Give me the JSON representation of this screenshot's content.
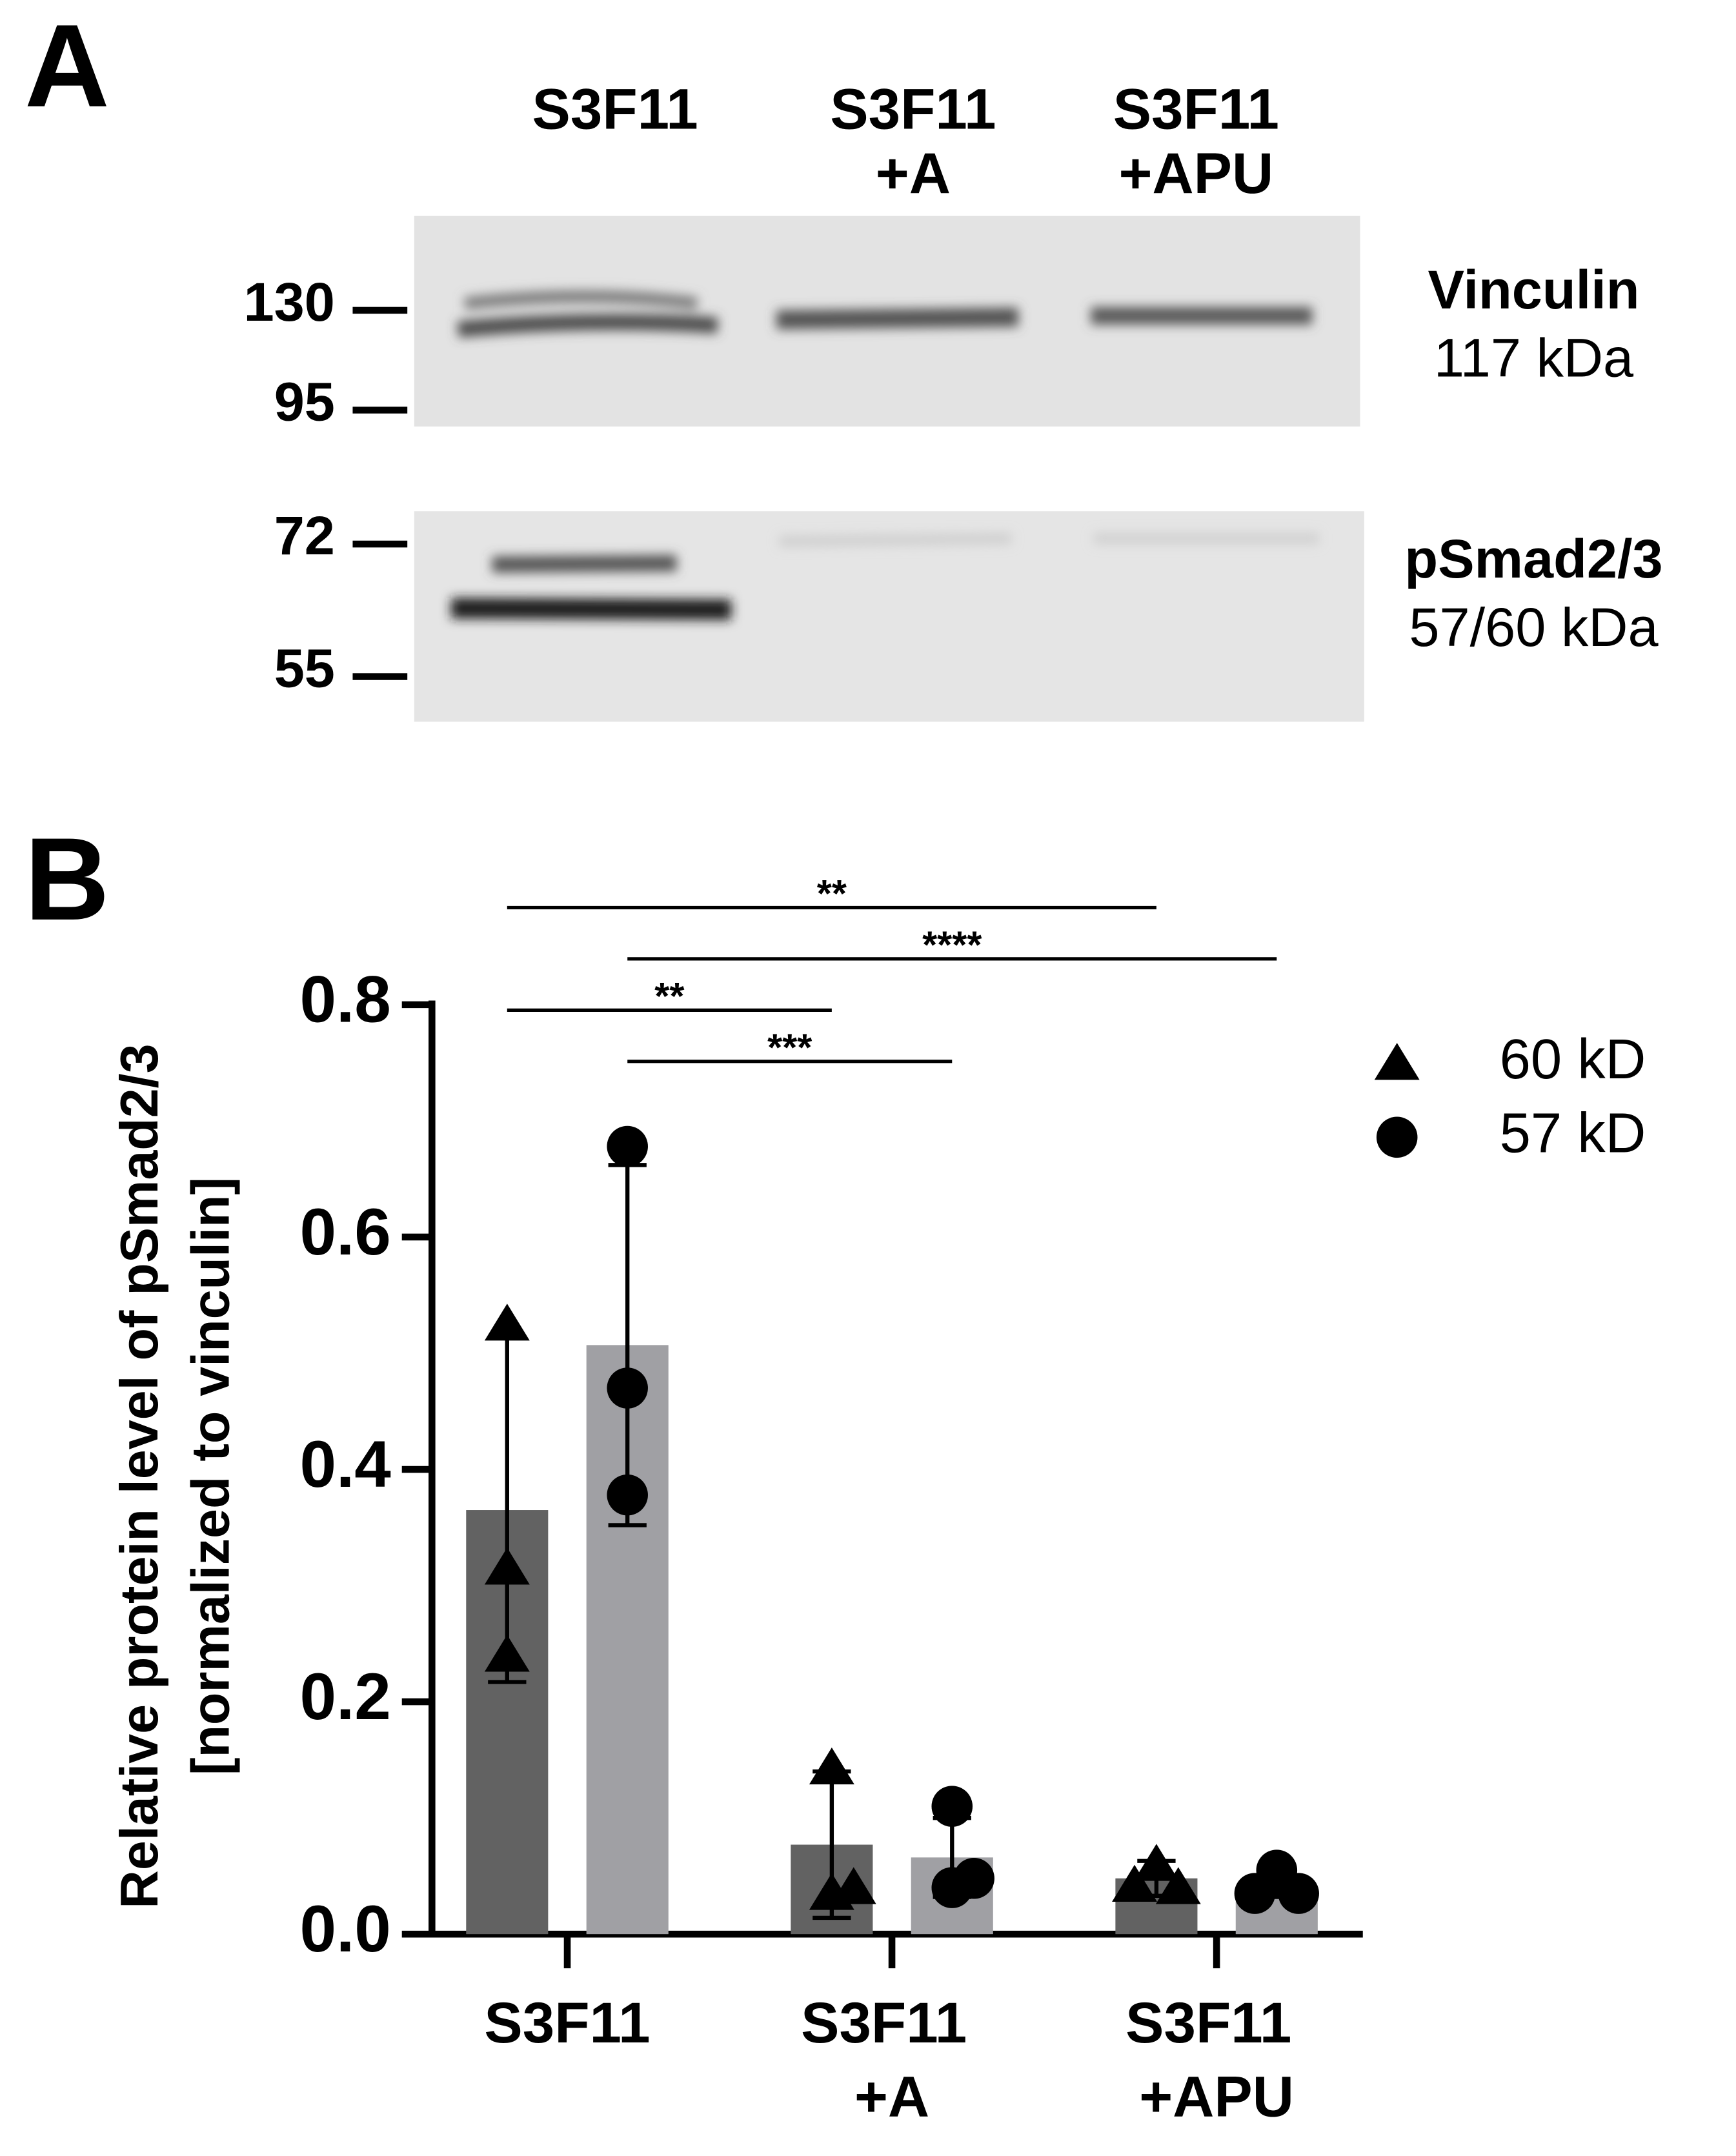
{
  "panel_a": {
    "label": "A",
    "lanes": [
      [
        "S3F11"
      ],
      [
        "S3F11",
        "+A"
      ],
      [
        "S3F11",
        "+APU"
      ]
    ],
    "markers": [
      130,
      95,
      72,
      55
    ],
    "blots": [
      {
        "protein": "Vinculin",
        "size": "117 kDa"
      },
      {
        "protein": "pSmad2/3",
        "size": "57/60 kDa"
      }
    ]
  },
  "chart_data": {
    "type": "bar",
    "label": "B",
    "y_label": [
      "Relative protein level of pSmad2/3",
      "[normalized to vinculin]"
    ],
    "categories": [
      "S3F11",
      "S3F11 +A",
      "S3F11 +APU"
    ],
    "series": [
      {
        "name": "60 kD",
        "color": "#626262",
        "marker": "triangle",
        "values": [
          0.365,
          0.077,
          0.048
        ],
        "errors": [
          0.148,
          0.063,
          0.015
        ],
        "points": [
          [
            0.525,
            0.315,
            0.24
          ],
          [
            0.143,
            0.035,
            0.04
          ],
          [
            0.06,
            0.04,
            0.042
          ]
        ]
      },
      {
        "name": "57 kD",
        "color": "#a0a0a4",
        "marker": "circle",
        "values": [
          0.507,
          0.066,
          0.04
        ],
        "errors": [
          0.155,
          0.034,
          0.008
        ],
        "points": [
          [
            0.678,
            0.47,
            0.378
          ],
          [
            0.11,
            0.04,
            0.048
          ],
          [
            0.055,
            0.035,
            0.035
          ]
        ]
      }
    ],
    "significance": [
      {
        "label": "**",
        "from": "S3F11",
        "to": "S3F11 +APU",
        "series": "60 kD"
      },
      {
        "label": "****",
        "from": "S3F11",
        "to": "S3F11 +APU",
        "series": "57 kD"
      },
      {
        "label": "**",
        "from": "S3F11",
        "to": "S3F11 +A",
        "series": "60 kD"
      },
      {
        "label": "***",
        "from": "S3F11",
        "to": "S3F11 +A",
        "series": "57 kD"
      }
    ],
    "ylim": [
      0,
      0.8
    ],
    "yticks": [
      {
        "value": 0,
        "label": "0.0"
      },
      0.2,
      0.4,
      0.6,
      0.8
    ],
    "legend": "top-right"
  }
}
